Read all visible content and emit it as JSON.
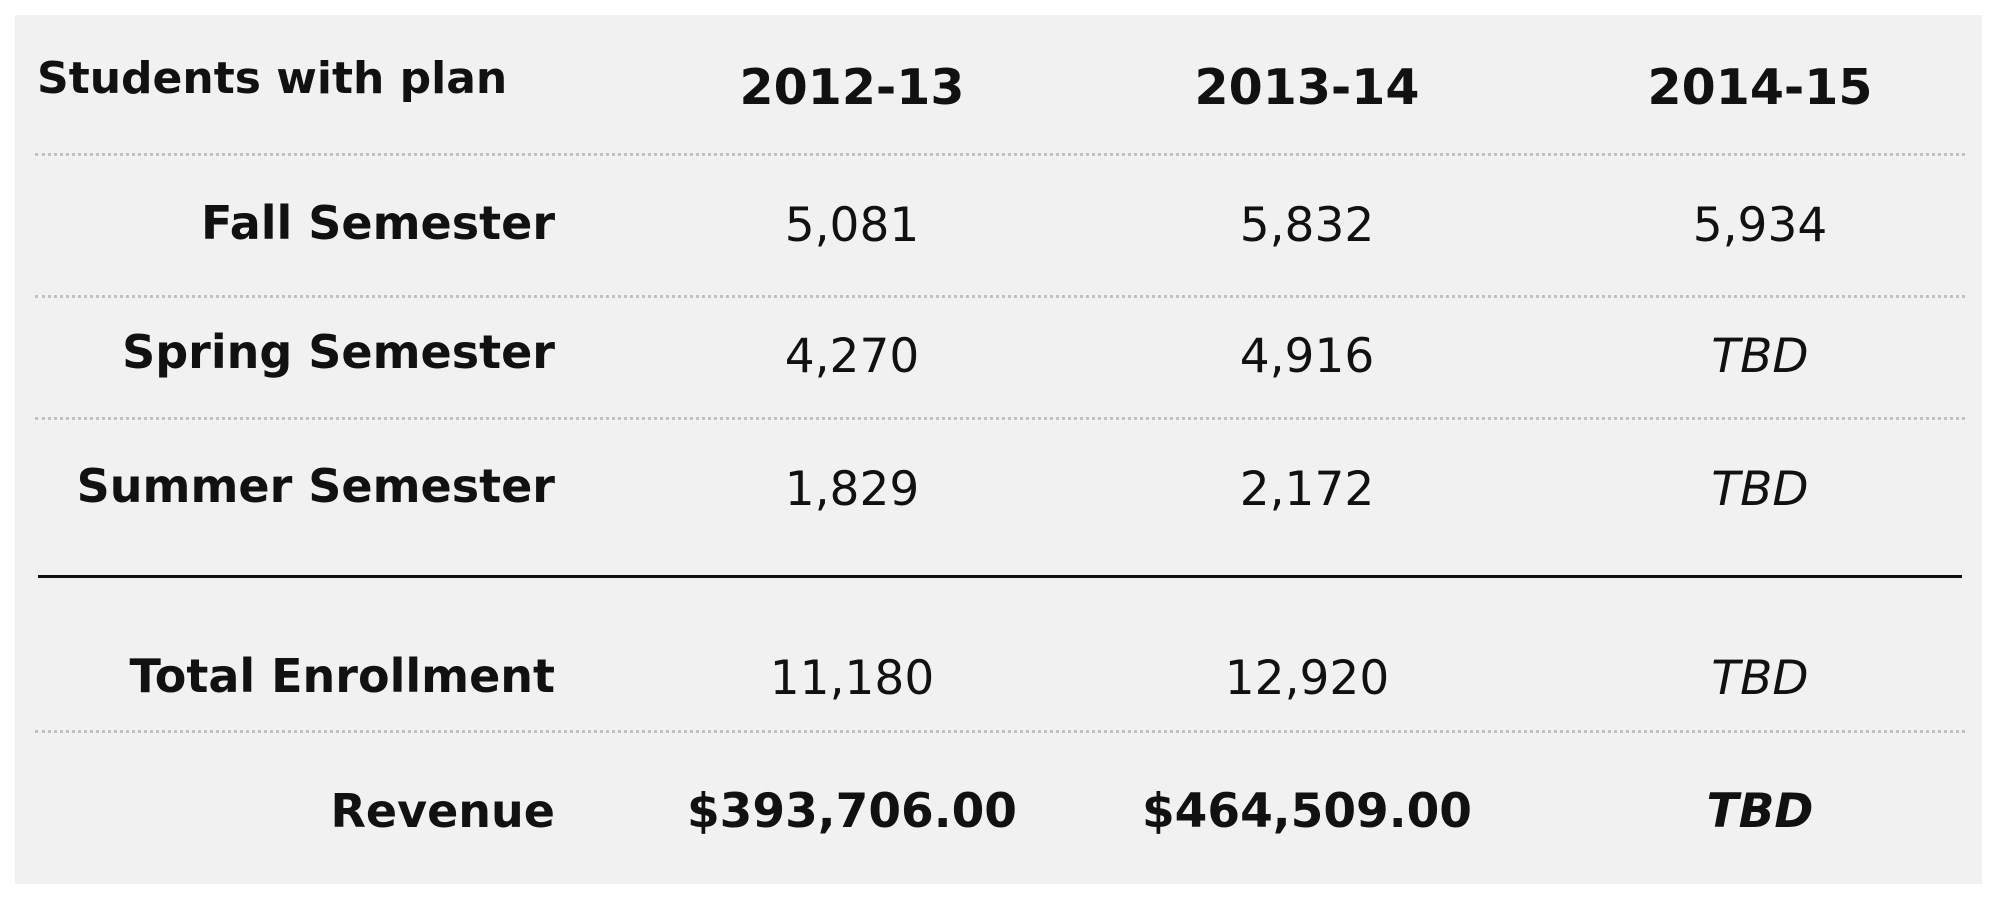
{
  "table": {
    "header": {
      "row_label": "Students with plan",
      "years": [
        "2012-13",
        "2013-14",
        "2014-15"
      ]
    },
    "rows": [
      {
        "label": "Fall Semester",
        "values": [
          "5,081",
          "5,832",
          "5,934"
        ]
      },
      {
        "label": "Spring Semester",
        "values": [
          "4,270",
          "4,916",
          "TBD"
        ]
      },
      {
        "label": "Summer Semester",
        "values": [
          "1,829",
          "2,172",
          "TBD"
        ]
      },
      {
        "label": "Total Enrollment",
        "values": [
          "11,180",
          "12,920",
          "TBD"
        ]
      },
      {
        "label": "Revenue",
        "values": [
          "$393,706.00",
          "$464,509.00",
          "TBD"
        ]
      }
    ]
  }
}
